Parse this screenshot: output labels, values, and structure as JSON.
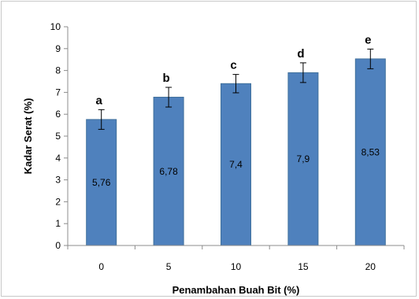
{
  "chart_data": {
    "type": "bar",
    "categories": [
      "0",
      "5",
      "10",
      "15",
      "20"
    ],
    "values": [
      5.76,
      6.78,
      7.4,
      7.9,
      8.53
    ],
    "value_labels": [
      "5,76",
      "6,78",
      "7,4",
      "7,9",
      "8,53"
    ],
    "error": [
      0.45,
      0.45,
      0.42,
      0.45,
      0.45
    ],
    "significance_letters": [
      "a",
      "b",
      "c",
      "d",
      "e"
    ],
    "xlabel": "Penambahan Buah Bit (%)",
    "ylabel": "Kadar Serat (%)",
    "ylim": [
      0,
      10
    ],
    "yticks": [
      "0",
      "1",
      "2",
      "3",
      "4",
      "5",
      "6",
      "7",
      "8",
      "9",
      "10"
    ],
    "grid": false,
    "legend": "none",
    "bar_color": "#4f81bd",
    "bar_edge_color": "#41719c"
  }
}
